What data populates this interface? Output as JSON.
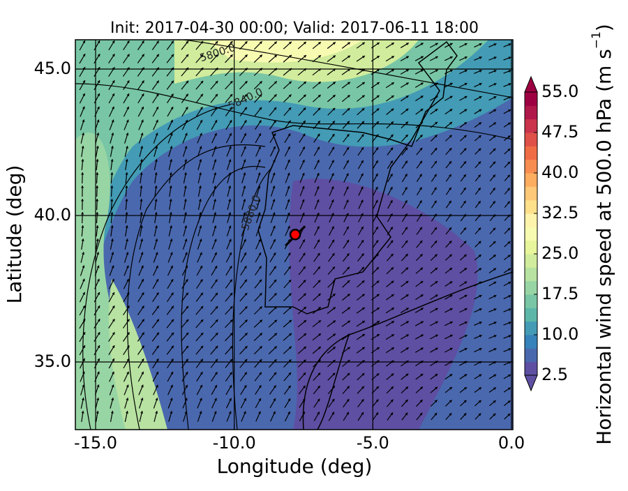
{
  "title": "Init: 2017-04-30 00:00; Valid: 2017-06-11 18:00",
  "x_axis": {
    "label": "Longitude (deg)",
    "lim": [
      -15.73,
      0.05
    ],
    "ticks": [
      {
        "value": -15,
        "label": "-15.0"
      },
      {
        "value": -10,
        "label": "-10.0"
      },
      {
        "value": -5,
        "label": "-5.0"
      },
      {
        "value": 0,
        "label": "0.0"
      }
    ]
  },
  "y_axis": {
    "label": "Latitude (deg)",
    "lim": [
      32.69,
      46.0
    ],
    "ticks": [
      {
        "value": 35,
        "label": "35.0"
      },
      {
        "value": 40,
        "label": "40.0"
      },
      {
        "value": 45,
        "label": "45.0"
      }
    ]
  },
  "colorbar": {
    "label": "Horizontal wind speed at 500.0 hPa (m s",
    "label_exp": "−1",
    "label_end": ")",
    "lim": [
      2.5,
      55
    ],
    "ticks": [
      {
        "value": 2.5,
        "label": "2.5"
      },
      {
        "value": 10,
        "label": "10.0"
      },
      {
        "value": 17.5,
        "label": "17.5"
      },
      {
        "value": 25,
        "label": "25.0"
      },
      {
        "value": 32.5,
        "label": "32.5"
      },
      {
        "value": 40,
        "label": "40.0"
      },
      {
        "value": 47.5,
        "label": "47.5"
      },
      {
        "value": 55,
        "label": "55.0"
      }
    ],
    "colors": [
      "#5e4fa2",
      "#4a68ae",
      "#3682ba",
      "#439bb5",
      "#5cb7a9",
      "#78c6a5",
      "#98d5a4",
      "#b7e2a1",
      "#d1ec9c",
      "#e7f59b",
      "#f7fbb1",
      "#fef3aa",
      "#fee08b",
      "#fdc877",
      "#fdad60",
      "#f88d52",
      "#f06c45",
      "#df5049",
      "#ca334b",
      "#b0174a",
      "#9e0142"
    ]
  },
  "contour_labels": [
    "5800.0",
    "5840.0",
    "5880.0"
  ],
  "marker": {
    "lon": -7.8,
    "lat": 39.35,
    "color": "#ff0000"
  }
}
